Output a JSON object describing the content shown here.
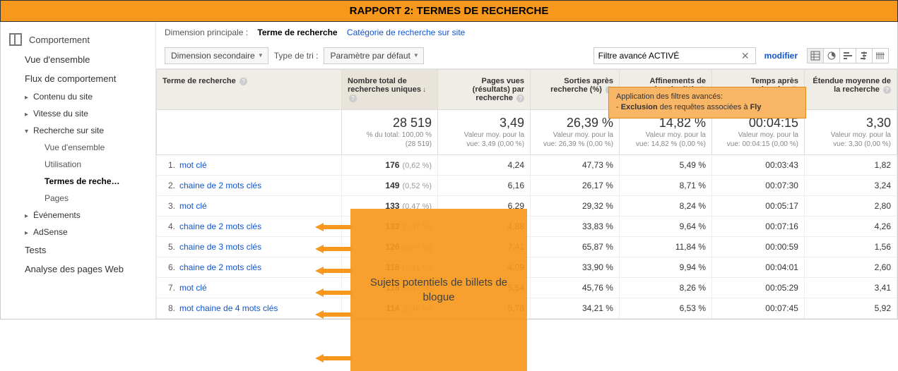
{
  "banner": {
    "title": "RAPPORT 2: TERMES DE RECHERCHE"
  },
  "sidebar": {
    "section": "Comportement",
    "items": [
      {
        "label": "Vue d'ensemble",
        "type": "item"
      },
      {
        "label": "Flux de comportement",
        "type": "item"
      },
      {
        "label": "Contenu du site",
        "type": "caret"
      },
      {
        "label": "Vitesse du site",
        "type": "caret"
      },
      {
        "label": "Recherche sur site",
        "type": "caret-open",
        "children": [
          {
            "label": "Vue d'ensemble"
          },
          {
            "label": "Utilisation"
          },
          {
            "label": "Termes de reche…",
            "active": true
          },
          {
            "label": "Pages"
          }
        ]
      },
      {
        "label": "Événements",
        "type": "caret"
      },
      {
        "label": "AdSense",
        "type": "caret"
      },
      {
        "label": "Tests",
        "type": "item"
      },
      {
        "label": "Analyse des pages Web",
        "type": "item"
      }
    ]
  },
  "dimrow": {
    "label": "Dimension principale :",
    "active": "Terme de recherche",
    "link": "Catégorie de recherche sur site"
  },
  "toolbar": {
    "dim2": "Dimension secondaire",
    "sortlbl": "Type de tri :",
    "sortval": "Paramètre par défaut",
    "filter": "Filtre avancé ACTIVÉ",
    "modifier": "modifier"
  },
  "columns": {
    "term": "Terme de recherche",
    "uniq": "Nombre total de recherches uniques",
    "pv": "Pages vues (résultats) par recherche",
    "exit": "Sorties après recherche (%)",
    "refine": "Affinements de recherche (%)",
    "time": "Temps après recherche",
    "depth": "Étendue moyenne de la recherche"
  },
  "summary": {
    "uniq": {
      "big": "28 519",
      "small1": "% du total: 100,00 %",
      "small2": "(28 519)"
    },
    "pv": {
      "big": "3,49",
      "small1": "Valeur moy. pour la",
      "small2": "vue: 3,49 (0,00 %)"
    },
    "exit": {
      "big": "26,39 %",
      "small1": "Valeur moy. pour la",
      "small2": "vue: 26,39 % (0,00 %)"
    },
    "refine": {
      "big": "14,82 %",
      "small1": "Valeur moy. pour la",
      "small2": "vue: 14,82 % (0,00 %)"
    },
    "time": {
      "big": "00:04:15",
      "small1": "Valeur moy. pour la",
      "small2": "vue: 00:04:15 (0,00 %)"
    },
    "depth": {
      "big": "3,30",
      "small1": "Valeur moy. pour la",
      "small2": "vue: 3,30 (0,00 %)"
    }
  },
  "rows": [
    {
      "n": "1.",
      "term": "mot clé",
      "uniq": "176",
      "pct": "(0,62 %)",
      "pv": "4,24",
      "exit": "47,73 %",
      "refine": "5,49 %",
      "time": "00:03:43",
      "depth": "1,82"
    },
    {
      "n": "2.",
      "term": "chaine de 2 mots clés",
      "uniq": "149",
      "pct": "(0,52 %)",
      "pv": "6,16",
      "exit": "26,17 %",
      "refine": "8,71 %",
      "time": "00:07:30",
      "depth": "3,24"
    },
    {
      "n": "3.",
      "term": "mot clé",
      "uniq": "133",
      "pct": "(0,47 %)",
      "pv": "6,29",
      "exit": "29,32 %",
      "refine": "8,24 %",
      "time": "00:05:17",
      "depth": "2,80"
    },
    {
      "n": "4.",
      "term": "chaine de 2 mots clés",
      "uniq": "133",
      "pct": "(0,47 %)",
      "pv": "4,88",
      "exit": "33,83 %",
      "refine": "9,64 %",
      "time": "00:07:16",
      "depth": "4,26"
    },
    {
      "n": "5.",
      "term": "chaine de 3 mots clés",
      "uniq": "126",
      "pct": "(0,44 %)",
      "pv": "7,41",
      "exit": "65,87 %",
      "refine": "11,84 %",
      "time": "00:00:59",
      "depth": "1,56"
    },
    {
      "n": "6.",
      "term": "chaine de 2 mots clés",
      "uniq": "118",
      "pct": "(0,41 %)",
      "pv": "4,09",
      "exit": "33,90 %",
      "refine": "9,94 %",
      "time": "00:04:01",
      "depth": "2,60"
    },
    {
      "n": "7.",
      "term": "mot clé",
      "uniq": "118",
      "pct": "(0,41 %)",
      "pv": "5,54",
      "exit": "45,76 %",
      "refine": "8,26 %",
      "time": "00:05:29",
      "depth": "3,41"
    },
    {
      "n": "8.",
      "term": "mot chaine de 4 mots clés",
      "uniq": "114",
      "pct": "(0,40 %)",
      "pv": "5,78",
      "exit": "34,21 %",
      "refine": "6,53 %",
      "time": "00:07:45",
      "depth": "5,92"
    }
  ],
  "annot": {
    "top1": "Application des filtres avancés:",
    "top2a": "- ",
    "top2b": "Exclusion",
    "top2c": " des requêtes associées à ",
    "top2d": "Fly",
    "box": "Sujets potentiels de billets de blogue"
  },
  "colors": {
    "accent": "#f7981d",
    "link": "#1155cc"
  }
}
